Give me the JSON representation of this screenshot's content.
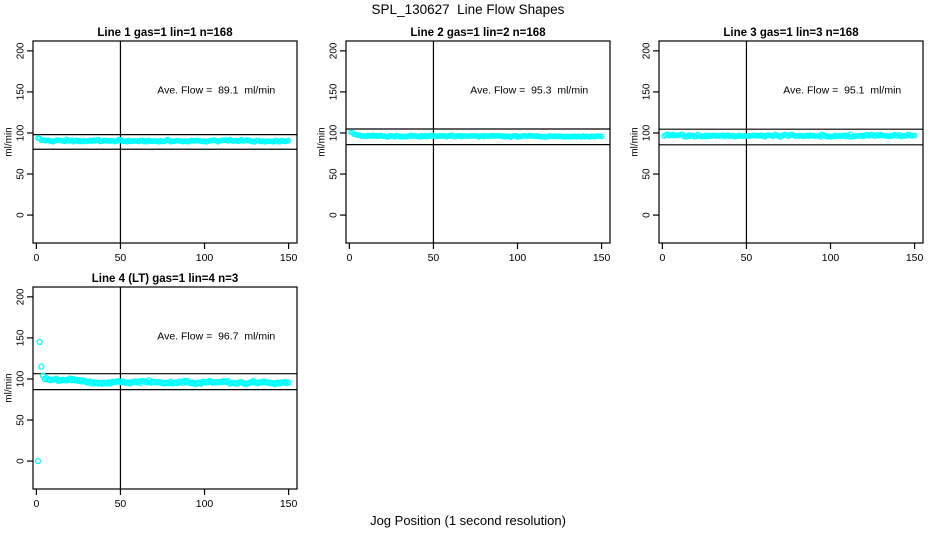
{
  "page": {
    "title": "SPL_130627  Line Flow Shapes",
    "xlabel": "Jog Position (1 second resolution)"
  },
  "colors": {
    "points": "#00FFFF",
    "axis": "#000000",
    "background": "#FFFFFF"
  },
  "chart_data": [
    {
      "type": "scatter",
      "title": "Line 1 gas=1 lin=1 n=168",
      "line": 1,
      "gas": 1,
      "lin": 1,
      "n": 168,
      "annotation": "Ave. Flow =  89.1  ml/min",
      "ave_flow_ml_min": 89.1,
      "ylabel": "ml/min",
      "xlim": [
        -2,
        155
      ],
      "ylim": [
        -34,
        212
      ],
      "xticks": [
        0,
        50,
        100,
        150
      ],
      "yticks": [
        0,
        50,
        100,
        150,
        200
      ],
      "vline_x": 50,
      "hlines": [
        98.0,
        80.2
      ],
      "grid": false,
      "legend": false,
      "marker": {
        "shape": "open-circle",
        "radius": 2.2
      },
      "series": {
        "x_start": 1,
        "x_end": 150,
        "step": 1,
        "center": [
          [
            1,
            93.5
          ],
          [
            3,
            91
          ],
          [
            6,
            90.2
          ],
          [
            150,
            90
          ]
        ],
        "noise": 0.9,
        "spike": 1.2,
        "seed": 1,
        "outliers": []
      }
    },
    {
      "type": "scatter",
      "title": "Line 2 gas=1 lin=2 n=168",
      "line": 2,
      "gas": 1,
      "lin": 2,
      "n": 168,
      "annotation": "Ave. Flow =  95.3  ml/min",
      "ave_flow_ml_min": 95.3,
      "ylabel": "ml/min",
      "xlim": [
        -2,
        155
      ],
      "ylim": [
        -34,
        212
      ],
      "xticks": [
        0,
        50,
        100,
        150
      ],
      "yticks": [
        0,
        50,
        100,
        150,
        200
      ],
      "vline_x": 50,
      "hlines": [
        104.8,
        85.8
      ],
      "grid": false,
      "legend": false,
      "marker": {
        "shape": "open-circle",
        "radius": 2.2
      },
      "series": {
        "x_start": 1,
        "x_end": 150,
        "step": 1,
        "center": [
          [
            1,
            101.5
          ],
          [
            2,
            99.5
          ],
          [
            4,
            97.5
          ],
          [
            7,
            96.3
          ],
          [
            12,
            96
          ],
          [
            150,
            95.8
          ]
        ],
        "noise": 0.8,
        "spike": 1.0,
        "seed": 2,
        "outliers": []
      }
    },
    {
      "type": "scatter",
      "title": "Line 3 gas=1 lin=3 n=168",
      "line": 3,
      "gas": 1,
      "lin": 3,
      "n": 168,
      "annotation": "Ave. Flow =  95.1  ml/min",
      "ave_flow_ml_min": 95.1,
      "ylabel": "ml/min",
      "xlim": [
        -2,
        155
      ],
      "ylim": [
        -34,
        212
      ],
      "xticks": [
        0,
        50,
        100,
        150
      ],
      "yticks": [
        0,
        50,
        100,
        150,
        200
      ],
      "vline_x": 50,
      "hlines": [
        104.6,
        85.6
      ],
      "grid": false,
      "legend": false,
      "marker": {
        "shape": "open-circle",
        "radius": 2.2
      },
      "series": {
        "x_start": 1,
        "x_end": 150,
        "step": 1,
        "center": [
          [
            1,
            96.5
          ],
          [
            150,
            96
          ]
        ],
        "noise": 1.0,
        "spike": 1.6,
        "seed": 3,
        "outliers": []
      }
    },
    {
      "type": "scatter",
      "title": "Line 4 (LT) gas=1 lin=4 n=3",
      "line": 4,
      "line_note": "LT",
      "gas": 1,
      "lin": 4,
      "n": 3,
      "annotation": "Ave. Flow =  96.7  ml/min",
      "ave_flow_ml_min": 96.7,
      "ylabel": "ml/min",
      "xlim": [
        -2,
        155
      ],
      "ylim": [
        -34,
        212
      ],
      "xticks": [
        0,
        50,
        100,
        150
      ],
      "yticks": [
        0,
        50,
        100,
        150,
        200
      ],
      "vline_x": 50,
      "hlines": [
        106.4,
        87.0
      ],
      "grid": false,
      "legend": false,
      "marker": {
        "shape": "open-circle",
        "radius": 2.5
      },
      "series": {
        "x_start": 5,
        "x_end": 150,
        "step": 1,
        "center": [
          [
            5,
            100.5
          ],
          [
            10,
            99
          ],
          [
            15,
            98.5
          ],
          [
            22,
            98.8
          ],
          [
            28,
            97
          ],
          [
            35,
            95
          ],
          [
            42,
            94.8
          ],
          [
            50,
            96.8
          ],
          [
            55,
            95.5
          ],
          [
            65,
            96.5
          ],
          [
            75,
            95.3
          ],
          [
            85,
            96
          ],
          [
            95,
            95
          ],
          [
            105,
            96
          ],
          [
            115,
            95.2
          ],
          [
            125,
            95
          ],
          [
            135,
            95.8
          ],
          [
            142,
            94.6
          ],
          [
            150,
            95.5
          ]
        ],
        "noise": 1.1,
        "spike": 1.5,
        "seed": 4,
        "outliers": [
          [
            1,
            0
          ],
          [
            2,
            145
          ],
          [
            3,
            115
          ],
          [
            4,
            104
          ]
        ]
      }
    }
  ]
}
